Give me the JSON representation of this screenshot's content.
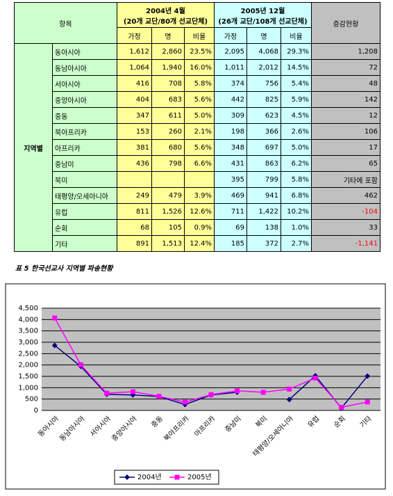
{
  "table": {
    "header": {
      "item": "항목",
      "group2004": "2004년 4월\n(20개 교단/80개 선교단체)",
      "group2005": "2005년 12월\n(26개 교단/108개 선교단체)",
      "change": "증감현황",
      "sub": [
        "가정",
        "명",
        "비율",
        "가정",
        "명",
        "비율"
      ]
    },
    "section": "지역별",
    "rows": [
      [
        "동아시아",
        "1,612",
        "2,860",
        "23.5%",
        "2,095",
        "4,068",
        "29.3%",
        "1,208"
      ],
      [
        "동남아시아",
        "1,064",
        "1,940",
        "16.0%",
        "1,011",
        "2,012",
        "14.5%",
        "72"
      ],
      [
        "서아시아",
        "416",
        "708",
        "5.8%",
        "374",
        "756",
        "5.4%",
        "48"
      ],
      [
        "중앙아시아",
        "404",
        "683",
        "5.6%",
        "442",
        "825",
        "5.9%",
        "142"
      ],
      [
        "중동",
        "347",
        "611",
        "5.0%",
        "309",
        "623",
        "4.5%",
        "12"
      ],
      [
        "북아프리카",
        "153",
        "260",
        "2.1%",
        "198",
        "366",
        "2.6%",
        "106"
      ],
      [
        "아프리카",
        "381",
        "680",
        "5.6%",
        "348",
        "697",
        "5.0%",
        "17"
      ],
      [
        "중남미",
        "436",
        "798",
        "6.6%",
        "431",
        "863",
        "6.2%",
        "65"
      ],
      [
        "북미",
        null,
        null,
        null,
        "395",
        "799",
        "5.8%",
        "기타에 포함"
      ],
      [
        "태평양/오세아니아",
        "249",
        "479",
        "3.9%",
        "469",
        "941",
        "6.8%",
        "462"
      ],
      [
        "유럽",
        "811",
        "1,526",
        "12.6%",
        "711",
        "1,422",
        "10.2%",
        "-104"
      ],
      [
        "순회",
        "68",
        "105",
        "0.9%",
        "69",
        "138",
        "1.0%",
        "33"
      ],
      [
        "기타",
        "891",
        "1,513",
        "12.4%",
        "185",
        "372",
        "2.7%",
        "-1,141"
      ]
    ]
  },
  "caption": "표 5 한국선교사 지역별 파송현황",
  "chart_data": {
    "type": "line",
    "categories": [
      "동아시아",
      "동남아시아",
      "서아시아",
      "중앙아시아",
      "중동",
      "북아프리카",
      "아프리카",
      "중남미",
      "북미",
      "태평양/오세아니아",
      "유럽",
      "순회",
      "기타"
    ],
    "series": [
      {
        "name": "2004년",
        "color": "#000080",
        "marker": "diamond",
        "values": [
          2860,
          1940,
          708,
          683,
          611,
          260,
          680,
          798,
          null,
          479,
          1526,
          105,
          1513
        ]
      },
      {
        "name": "2005년",
        "color": "#ff00ff",
        "marker": "square",
        "values": [
          4068,
          2012,
          756,
          825,
          623,
          366,
          697,
          863,
          799,
          941,
          1422,
          138,
          372
        ]
      }
    ],
    "ylim": [
      0,
      4500
    ],
    "yticks": [
      0,
      500,
      {
        "value": 1000,
        "label": "1,000"
      },
      {
        "value": 1500,
        "label": "1,500"
      },
      {
        "value": 2000,
        "label": "2,000"
      },
      {
        "value": 2500,
        "label": "2,500"
      },
      {
        "value": 3000,
        "label": "3,000"
      },
      {
        "value": 3500,
        "label": "3,500"
      },
      {
        "value": 4000,
        "label": "4,000"
      },
      {
        "value": 4500,
        "label": "4,500"
      }
    ],
    "grid": true,
    "legend": "bottom"
  }
}
